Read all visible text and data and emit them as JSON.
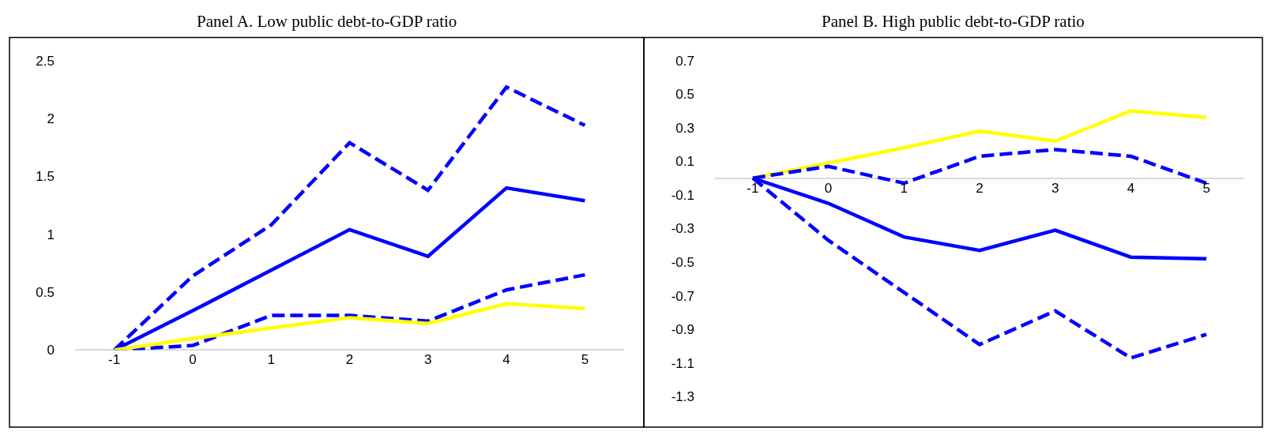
{
  "chart_data": [
    {
      "type": "line",
      "title": "Panel A. Low public debt-to-GDP ratio",
      "categories": [
        "-1",
        "0",
        "1",
        "2",
        "3",
        "4",
        "5"
      ],
      "ylim": [
        0,
        2.5
      ],
      "yticks": [
        0,
        0.5,
        1,
        1.5,
        2,
        2.5
      ],
      "series": [
        {
          "color": "#0000ff",
          "line_style": "dashed",
          "values": [
            0,
            0.64,
            1.08,
            1.79,
            1.38,
            2.27,
            1.94
          ]
        },
        {
          "color": "#0000ff",
          "line_style": "solid",
          "values": [
            0,
            0.34,
            0.69,
            1.04,
            0.81,
            1.4,
            1.29
          ]
        },
        {
          "color": "#0000ff",
          "line_style": "dashed",
          "values": [
            0,
            0.04,
            0.3,
            0.3,
            0.25,
            0.52,
            0.65
          ]
        },
        {
          "color": "#ffff00",
          "line_style": "solid",
          "values": [
            0,
            0.1,
            0.19,
            0.28,
            0.23,
            0.4,
            0.36
          ]
        }
      ]
    },
    {
      "type": "line",
      "title": "Panel B. High public debt-to-GDP ratio",
      "categories": [
        "-1",
        "0",
        "1",
        "2",
        "3",
        "4",
        "5"
      ],
      "ylim": [
        -1.3,
        0.7
      ],
      "yticks": [
        {
          "value": -1.3,
          "label": "-1.3"
        },
        {
          "value": -1.1,
          "label": "-1.1"
        },
        {
          "value": -0.9,
          "label": "-0.9"
        },
        {
          "value": -0.7,
          "label": "-0.7"
        },
        {
          "value": -0.5,
          "label": "-0.5"
        },
        {
          "value": -0.3,
          "label": "-0.3"
        },
        {
          "value": -0.1,
          "label": "-0.1"
        },
        0.1,
        0.3,
        0.5,
        0.7
      ],
      "series": [
        {
          "color": "#ffff00",
          "line_style": "solid",
          "values": [
            0,
            0.09,
            0.18,
            0.28,
            0.22,
            0.4,
            0.36
          ]
        },
        {
          "color": "#0000ff",
          "line_style": "dashed",
          "values": [
            0,
            0.07,
            -0.03,
            0.13,
            0.17,
            0.13,
            -0.03
          ]
        },
        {
          "color": "#0000ff",
          "line_style": "solid",
          "values": [
            0,
            -0.15,
            -0.35,
            -0.43,
            -0.31,
            -0.47,
            -0.48
          ]
        },
        {
          "color": "#0000ff",
          "line_style": "dashed",
          "values": [
            0,
            -0.37,
            -0.68,
            -0.99,
            -0.79,
            -1.07,
            -0.93
          ]
        }
      ]
    }
  ]
}
